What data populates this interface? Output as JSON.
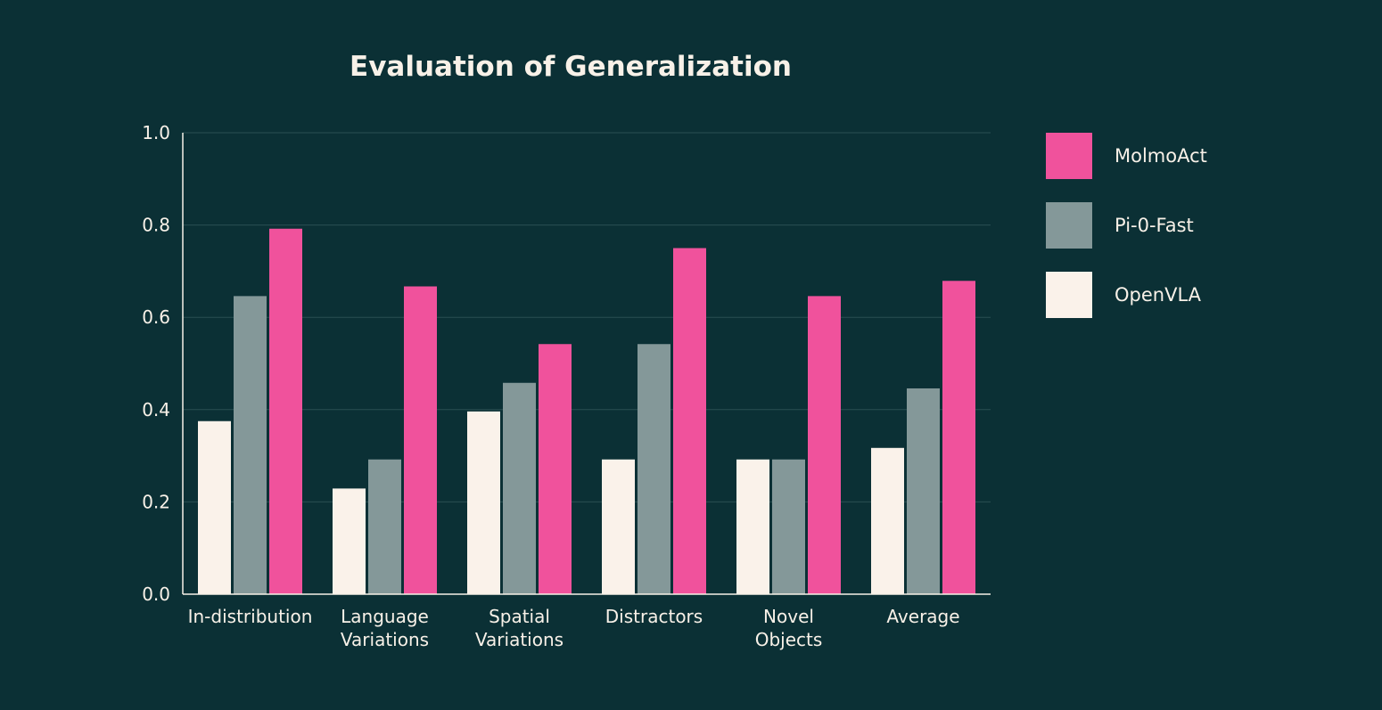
{
  "chart_data": {
    "type": "bar",
    "title": "Evaluation of Generalization",
    "xlabel": "",
    "ylabel": "",
    "ylim": [
      0,
      1.0
    ],
    "yticks": [
      "0.0",
      "0.2",
      "0.4",
      "0.6",
      "0.8",
      "1.0"
    ],
    "grid": true,
    "legend_position": "right",
    "categories": [
      [
        "In-distribution"
      ],
      [
        "Language",
        "Variations"
      ],
      [
        "Spatial",
        "Variations"
      ],
      [
        "Distractors"
      ],
      [
        "Novel",
        "Objects"
      ],
      [
        "Average"
      ]
    ],
    "series": [
      {
        "name": "OpenVLA",
        "color": "#faf2ea",
        "values": [
          0.375,
          0.229,
          0.396,
          0.292,
          0.292,
          0.317
        ]
      },
      {
        "name": "Pi-0-Fast",
        "color": "#849899",
        "values": [
          0.646,
          0.292,
          0.458,
          0.542,
          0.292,
          0.446
        ]
      },
      {
        "name": "MolmoAct",
        "color": "#f0529c",
        "values": [
          0.792,
          0.667,
          0.542,
          0.75,
          0.646,
          0.679
        ]
      }
    ],
    "legend_order": [
      "MolmoAct",
      "Pi-0-Fast",
      "OpenVLA"
    ]
  }
}
